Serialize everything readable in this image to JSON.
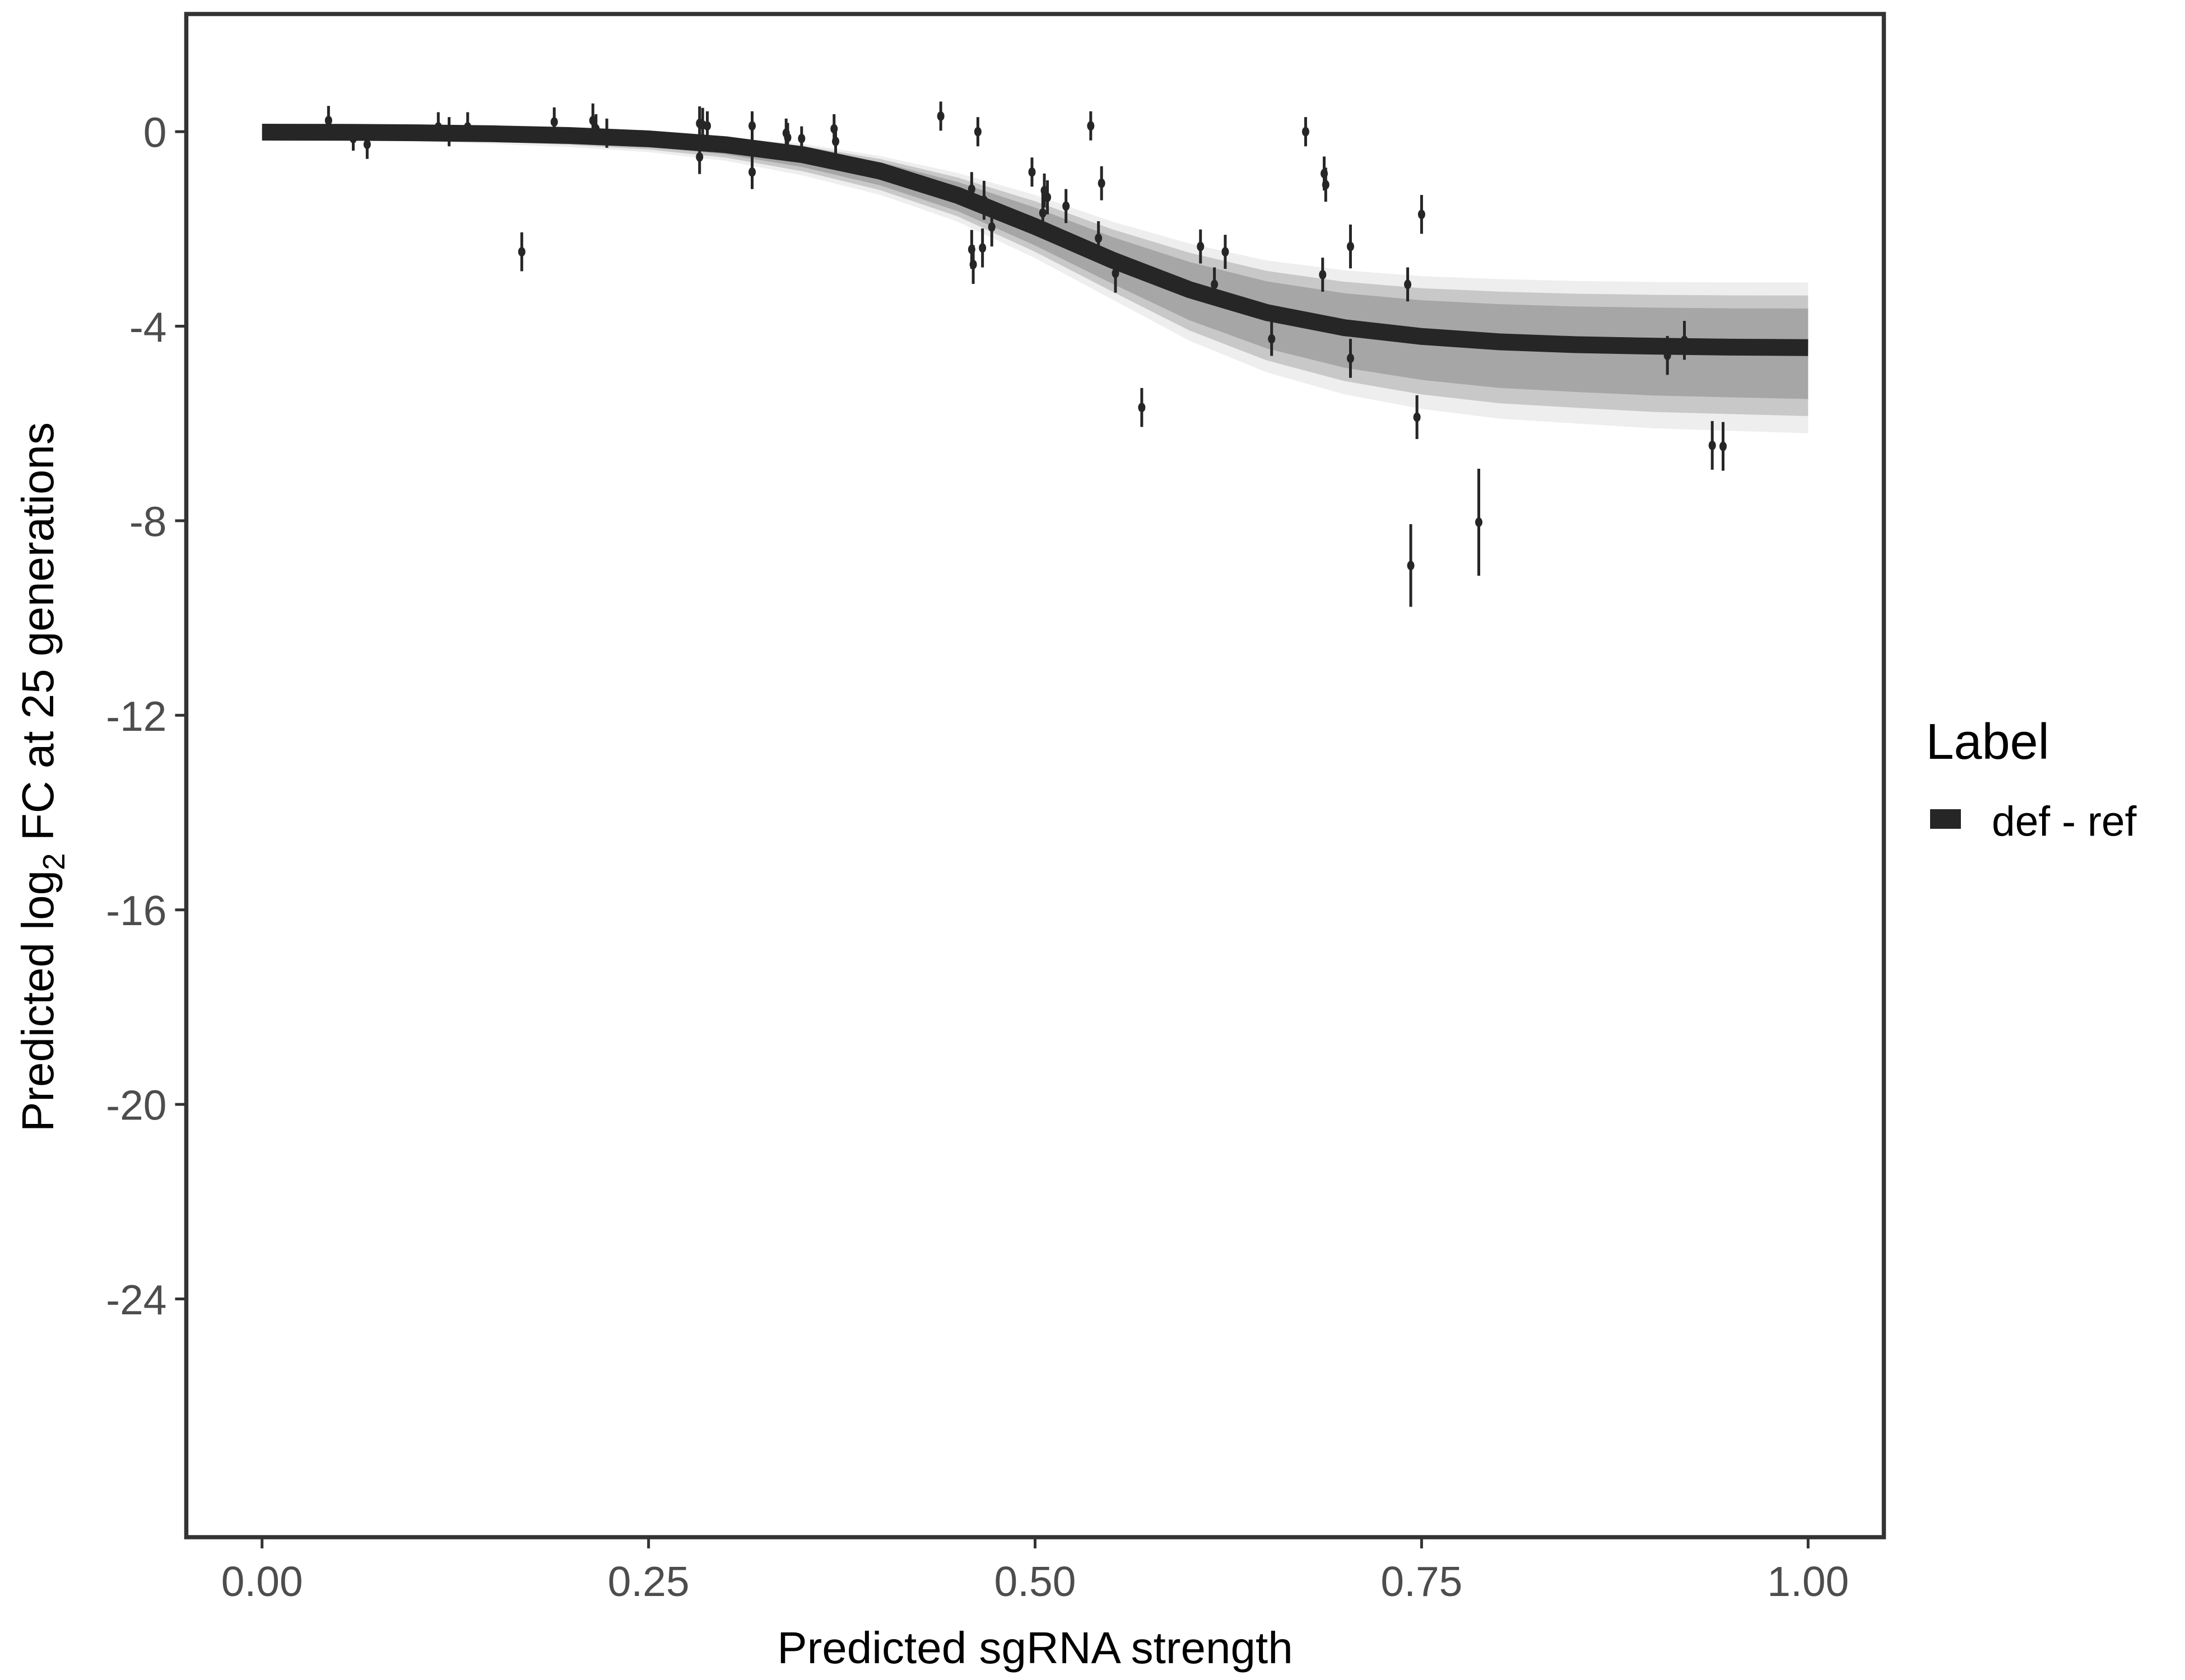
{
  "chart_data": {
    "type": "scatter",
    "xlabel": "Predicted sgRNA strength",
    "ylabel_parts": [
      "Predicted  log",
      "2",
      " FC at 25 generations"
    ],
    "xlim": [
      -0.049,
      1.049
    ],
    "ylim": [
      -28.9,
      2.42
    ],
    "x_ticks": [
      0,
      0.25,
      0.5,
      0.75,
      1
    ],
    "x_tick_labels": [
      "0.00",
      "0.25",
      "0.50",
      "0.75",
      "1.00"
    ],
    "y_ticks": [
      0,
      -4,
      -8,
      -12,
      -16,
      -20,
      -24
    ],
    "y_tick_labels": [
      "0",
      "-4",
      "-8",
      "-12",
      "-16",
      "-20",
      "-24"
    ],
    "grid": false,
    "legend": {
      "title": "Label",
      "placement": "right",
      "entries": [
        {
          "label": "def - ref",
          "color": "#262626"
        }
      ]
    },
    "colors": {
      "fit": "#262626",
      "band": "#a6a6a6",
      "points": "#262626",
      "frame": "#333333"
    },
    "fit_curve": {
      "x": [
        0,
        0.05,
        0.1,
        0.15,
        0.2,
        0.25,
        0.3,
        0.35,
        0.4,
        0.45,
        0.5,
        0.55,
        0.6,
        0.65,
        0.7,
        0.75,
        0.8,
        0.85,
        0.9,
        0.95,
        1.0
      ],
      "y": [
        -0.01,
        -0.012,
        -0.023,
        -0.043,
        -0.08,
        -0.147,
        -0.268,
        -0.475,
        -0.812,
        -1.31,
        -1.95,
        -2.64,
        -3.25,
        -3.72,
        -4.03,
        -4.21,
        -4.32,
        -4.38,
        -4.41,
        -4.43,
        -4.44
      ],
      "band_upper": [
        0.1,
        0.08,
        0.07,
        0.05,
        0.0,
        -0.05,
        -0.12,
        -0.25,
        -0.5,
        -0.85,
        -1.3,
        -1.85,
        -2.3,
        -2.65,
        -2.85,
        -2.97,
        -3.03,
        -3.07,
        -3.09,
        -3.1,
        -3.1
      ],
      "band_lower": [
        -0.15,
        -0.17,
        -0.2,
        -0.25,
        -0.32,
        -0.42,
        -0.6,
        -0.9,
        -1.3,
        -1.85,
        -2.6,
        -3.45,
        -4.3,
        -4.95,
        -5.4,
        -5.7,
        -5.9,
        -6.0,
        -6.1,
        -6.15,
        -6.2
      ]
    },
    "points": [
      {
        "x": 0.043,
        "y": 0.23,
        "err": 0.3
      },
      {
        "x": 0.059,
        "y": -0.14,
        "err": 0.25
      },
      {
        "x": 0.068,
        "y": -0.26,
        "err": 0.3
      },
      {
        "x": 0.114,
        "y": 0.1,
        "err": 0.3
      },
      {
        "x": 0.121,
        "y": 0.0,
        "err": 0.3
      },
      {
        "x": 0.133,
        "y": 0.1,
        "err": 0.3
      },
      {
        "x": 0.168,
        "y": -2.47,
        "err": 0.4
      },
      {
        "x": 0.189,
        "y": 0.2,
        "err": 0.3
      },
      {
        "x": 0.214,
        "y": 0.23,
        "err": 0.35
      },
      {
        "x": 0.216,
        "y": 0.06,
        "err": 0.3
      },
      {
        "x": 0.223,
        "y": -0.03,
        "err": 0.3
      },
      {
        "x": 0.283,
        "y": -0.52,
        "err": 0.35
      },
      {
        "x": 0.283,
        "y": 0.17,
        "err": 0.35
      },
      {
        "x": 0.285,
        "y": 0.14,
        "err": 0.35
      },
      {
        "x": 0.288,
        "y": 0.12,
        "err": 0.3
      },
      {
        "x": 0.317,
        "y": 0.12,
        "err": 0.3
      },
      {
        "x": 0.317,
        "y": -0.83,
        "err": 0.35
      },
      {
        "x": 0.339,
        "y": -0.03,
        "err": 0.3
      },
      {
        "x": 0.34,
        "y": -0.12,
        "err": 0.3
      },
      {
        "x": 0.349,
        "y": -0.14,
        "err": 0.25
      },
      {
        "x": 0.37,
        "y": 0.06,
        "err": 0.3
      },
      {
        "x": 0.371,
        "y": -0.2,
        "err": 0.3
      },
      {
        "x": 0.439,
        "y": 0.32,
        "err": 0.3
      },
      {
        "x": 0.459,
        "y": -1.18,
        "err": 0.35
      },
      {
        "x": 0.459,
        "y": -2.42,
        "err": 0.4
      },
      {
        "x": 0.46,
        "y": -2.73,
        "err": 0.4
      },
      {
        "x": 0.463,
        "y": 0.0,
        "err": 0.3
      },
      {
        "x": 0.466,
        "y": -2.39,
        "err": 0.4
      },
      {
        "x": 0.467,
        "y": -1.41,
        "err": 0.4
      },
      {
        "x": 0.472,
        "y": -1.96,
        "err": 0.4
      },
      {
        "x": 0.498,
        "y": -0.83,
        "err": 0.3
      },
      {
        "x": 0.505,
        "y": -1.67,
        "err": 0.4
      },
      {
        "x": 0.506,
        "y": -1.21,
        "err": 0.35
      },
      {
        "x": 0.508,
        "y": -1.35,
        "err": 0.35
      },
      {
        "x": 0.52,
        "y": -1.53,
        "err": 0.35
      },
      {
        "x": 0.536,
        "y": 0.12,
        "err": 0.3
      },
      {
        "x": 0.543,
        "y": -1.06,
        "err": 0.35
      },
      {
        "x": 0.541,
        "y": -2.19,
        "err": 0.35
      },
      {
        "x": 0.552,
        "y": -2.91,
        "err": 0.4
      },
      {
        "x": 0.569,
        "y": -5.67,
        "err": 0.4
      },
      {
        "x": 0.607,
        "y": -2.36,
        "err": 0.35
      },
      {
        "x": 0.616,
        "y": -3.14,
        "err": 0.35
      },
      {
        "x": 0.623,
        "y": -2.47,
        "err": 0.35
      },
      {
        "x": 0.653,
        "y": -4.26,
        "err": 0.35
      },
      {
        "x": 0.675,
        "y": 0.0,
        "err": 0.3
      },
      {
        "x": 0.687,
        "y": -0.86,
        "err": 0.35
      },
      {
        "x": 0.688,
        "y": -1.09,
        "err": 0.35
      },
      {
        "x": 0.686,
        "y": -2.94,
        "err": 0.35
      },
      {
        "x": 0.704,
        "y": -2.36,
        "err": 0.45
      },
      {
        "x": 0.704,
        "y": -4.66,
        "err": 0.4
      },
      {
        "x": 0.741,
        "y": -3.14,
        "err": 0.35
      },
      {
        "x": 0.743,
        "y": -8.92,
        "err": 0.85
      },
      {
        "x": 0.747,
        "y": -5.87,
        "err": 0.45
      },
      {
        "x": 0.75,
        "y": -1.7,
        "err": 0.4
      },
      {
        "x": 0.787,
        "y": -8.03,
        "err": 1.1
      },
      {
        "x": 0.909,
        "y": -4.6,
        "err": 0.4
      },
      {
        "x": 0.92,
        "y": -4.29,
        "err": 0.4
      },
      {
        "x": 0.938,
        "y": -6.45,
        "err": 0.5
      },
      {
        "x": 0.945,
        "y": -6.47,
        "err": 0.5
      }
    ]
  }
}
